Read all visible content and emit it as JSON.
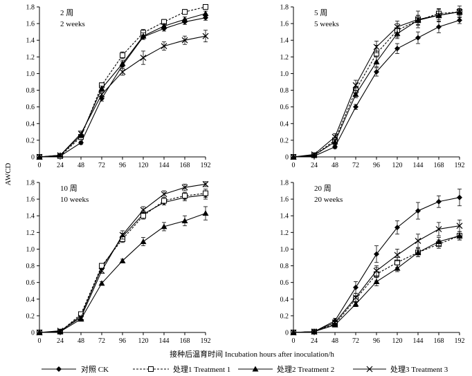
{
  "chart_data": {
    "type": "line",
    "ylabel": "AWCD",
    "xlabel": "接种后温育时间  Incubation hours after inoculation/h",
    "x": [
      0,
      24,
      48,
      72,
      96,
      120,
      144,
      168,
      192
    ],
    "xlim": [
      0,
      192
    ],
    "series_names": [
      "对照  CK",
      "处理1 Treatment 1",
      "处理2 Treatment 2",
      "处理3 Treatment 3"
    ],
    "panels": [
      {
        "title_cn": "2 周",
        "title_en": "2  weeks",
        "ylim": [
          0,
          1.8
        ],
        "yticks": [
          "0",
          "0.2",
          "0.4",
          "0.6",
          "0.8",
          "1.0",
          "1.2",
          "1.4",
          "1.6",
          "1.8"
        ],
        "series": [
          {
            "name": "对照  CK",
            "values": [
              0,
              0.01,
              0.17,
              0.7,
              1.1,
              1.44,
              1.54,
              1.62,
              1.67
            ],
            "errors": [
              0,
              0.01,
              0.02,
              0.03,
              0.04,
              0.03,
              0.03,
              0.03,
              0.03
            ]
          },
          {
            "name": "处理1 Treatment 1",
            "values": [
              0,
              0.01,
              0.24,
              0.86,
              1.22,
              1.49,
              1.62,
              1.74,
              1.8
            ],
            "errors": [
              0,
              0.01,
              0.03,
              0.03,
              0.04,
              0.04,
              0.03,
              0.03,
              0.03
            ]
          },
          {
            "name": "处理2 Treatment 2",
            "values": [
              0,
              0.02,
              0.26,
              0.82,
              1.12,
              1.45,
              1.57,
              1.65,
              1.72
            ],
            "errors": [
              0,
              0.01,
              0.03,
              0.03,
              0.04,
              0.04,
              0.03,
              0.03,
              0.03
            ]
          },
          {
            "name": "处理3 Treatment 3",
            "values": [
              0,
              0.02,
              0.28,
              0.75,
              1.02,
              1.19,
              1.33,
              1.4,
              1.45
            ],
            "errors": [
              0,
              0.01,
              0.03,
              0.03,
              0.04,
              0.08,
              0.05,
              0.05,
              0.07
            ]
          }
        ]
      },
      {
        "title_cn": "5 周",
        "title_en": "5  weeks",
        "ylim": [
          0,
          1.8
        ],
        "yticks": [
          "0",
          "0.2",
          "0.4",
          "0.6",
          "0.8",
          "1.0",
          "1.2",
          "1.4",
          "1.6",
          "1.8"
        ],
        "series": [
          {
            "name": "对照  CK",
            "values": [
              0,
              0.01,
              0.12,
              0.6,
              1.02,
              1.3,
              1.43,
              1.56,
              1.64
            ],
            "errors": [
              0,
              0.01,
              0.02,
              0.03,
              0.05,
              0.06,
              0.07,
              0.07,
              0.04
            ]
          },
          {
            "name": "处理1 Treatment 1",
            "values": [
              0,
              0.02,
              0.2,
              0.8,
              1.24,
              1.52,
              1.64,
              1.72,
              1.74
            ],
            "errors": [
              0,
              0.01,
              0.03,
              0.04,
              0.1,
              0.08,
              0.06,
              0.05,
              0.04
            ]
          },
          {
            "name": "处理2 Treatment 2",
            "values": [
              0,
              0.02,
              0.18,
              0.75,
              1.14,
              1.48,
              1.64,
              1.7,
              1.74
            ],
            "errors": [
              0,
              0.01,
              0.03,
              0.04,
              0.06,
              0.06,
              0.05,
              0.05,
              0.04
            ]
          },
          {
            "name": "处理3 Treatment 3",
            "values": [
              0,
              0.03,
              0.24,
              0.86,
              1.32,
              1.56,
              1.65,
              1.7,
              1.74
            ],
            "errors": [
              0,
              0.01,
              0.04,
              0.06,
              0.07,
              0.07,
              0.1,
              0.08,
              0.07
            ]
          }
        ]
      },
      {
        "title_cn": "10 周",
        "title_en": "10  weeks",
        "ylim": [
          0,
          1.8
        ],
        "yticks": [
          "0",
          "0.2",
          "0.4",
          "0.6",
          "0.8",
          "1.0",
          "1.2",
          "1.4",
          "1.6",
          "1.8"
        ],
        "series": [
          {
            "name": "对照  CK",
            "values": [
              0,
              0.01,
              0.2,
              0.78,
              1.15,
              1.42,
              1.56,
              1.62,
              1.65
            ],
            "errors": [
              0,
              0.01,
              0.02,
              0.03,
              0.04,
              0.04,
              0.03,
              0.04,
              0.05
            ]
          },
          {
            "name": "处理1 Treatment 1",
            "values": [
              0,
              0.01,
              0.22,
              0.8,
              1.12,
              1.4,
              1.58,
              1.64,
              1.67
            ],
            "errors": [
              0,
              0.01,
              0.02,
              0.03,
              0.04,
              0.04,
              0.03,
              0.04,
              0.05
            ]
          },
          {
            "name": "处理2 Treatment 2",
            "values": [
              0,
              0.01,
              0.16,
              0.59,
              0.86,
              1.09,
              1.27,
              1.34,
              1.43
            ],
            "errors": [
              0,
              0.01,
              0.02,
              0.02,
              0.02,
              0.05,
              0.05,
              0.06,
              0.08
            ]
          },
          {
            "name": "处理3 Treatment 3",
            "values": [
              0,
              0.02,
              0.18,
              0.74,
              1.17,
              1.47,
              1.66,
              1.74,
              1.78
            ],
            "errors": [
              0,
              0.01,
              0.02,
              0.03,
              0.05,
              0.04,
              0.04,
              0.04,
              0.03
            ]
          }
        ]
      },
      {
        "title_cn": "20 周",
        "title_en": "20  weeks",
        "ylim": [
          0,
          1.8
        ],
        "yticks": [
          "0",
          "0.2",
          "0.4",
          "0.6",
          "0.8",
          "1.0",
          "1.2",
          "1.4",
          "1.6",
          "1.8"
        ],
        "series": [
          {
            "name": "对照  CK",
            "values": [
              0,
              0.01,
              0.14,
              0.54,
              0.94,
              1.26,
              1.46,
              1.57,
              1.62
            ],
            "errors": [
              0,
              0.01,
              0.03,
              0.07,
              0.1,
              0.08,
              0.1,
              0.07,
              0.1
            ]
          },
          {
            "name": "处理1 Treatment 1",
            "values": [
              0,
              0.01,
              0.1,
              0.4,
              0.7,
              0.84,
              0.96,
              1.06,
              1.16
            ],
            "errors": [
              0,
              0.01,
              0.02,
              0.04,
              0.08,
              0.06,
              0.05,
              0.05,
              0.05
            ]
          },
          {
            "name": "处理2 Treatment 2",
            "values": [
              0,
              0.01,
              0.09,
              0.34,
              0.61,
              0.77,
              0.96,
              1.09,
              1.16
            ],
            "errors": [
              0,
              0.01,
              0.02,
              0.03,
              0.05,
              0.04,
              0.05,
              0.05,
              0.05
            ]
          },
          {
            "name": "处理3 Treatment 3",
            "values": [
              0,
              0.01,
              0.12,
              0.42,
              0.74,
              0.93,
              1.1,
              1.24,
              1.28
            ],
            "errors": [
              0,
              0.01,
              0.03,
              0.05,
              0.06,
              0.07,
              0.08,
              0.08,
              0.07
            ]
          }
        ]
      }
    ]
  }
}
